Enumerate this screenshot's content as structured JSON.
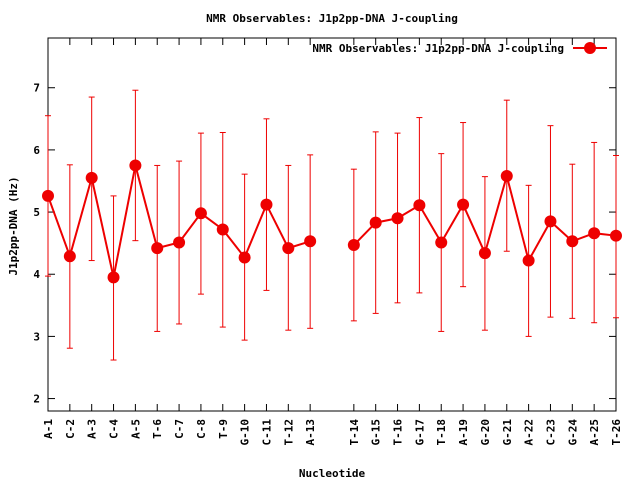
{
  "chart_data": {
    "type": "line",
    "title": "NMR Observables: J1p2pp-DNA J-coupling",
    "xlabel": "Nucleotide",
    "ylabel": "J1p2pp-DNA (Hz)",
    "ylim": [
      1.8,
      7.8
    ],
    "yticks": [
      2,
      3,
      4,
      5,
      6,
      7
    ],
    "legend": {
      "label": "NMR Observables: J1p2pp-DNA J-coupling",
      "position": "top-right"
    },
    "color": "#ee0000",
    "categories": [
      "A-1",
      "C-2",
      "A-3",
      "C-4",
      "A-5",
      "T-6",
      "C-7",
      "C-8",
      "T-9",
      "G-10",
      "C-11",
      "T-12",
      "A-13",
      "",
      "T-14",
      "G-15",
      "T-16",
      "G-17",
      "T-18",
      "A-19",
      "G-20",
      "G-21",
      "A-22",
      "C-23",
      "G-24",
      "A-25",
      "T-26"
    ],
    "series": [
      {
        "name": "NMR Observables: J1p2pp-DNA J-coupling",
        "values": [
          5.26,
          4.29,
          5.55,
          3.95,
          5.75,
          4.42,
          4.51,
          4.98,
          4.72,
          4.27,
          5.12,
          4.42,
          4.53,
          null,
          4.47,
          4.83,
          4.9,
          5.11,
          4.51,
          5.12,
          4.34,
          5.58,
          4.22,
          4.85,
          4.53,
          4.66,
          4.62
        ],
        "error_low": [
          3.97,
          2.81,
          4.22,
          2.62,
          4.54,
          3.08,
          3.2,
          3.68,
          3.15,
          2.94,
          3.74,
          3.1,
          3.13,
          null,
          3.25,
          3.37,
          3.54,
          3.7,
          3.08,
          3.8,
          3.1,
          4.37,
          3.0,
          3.31,
          3.29,
          3.22,
          3.3
        ],
        "error_high": [
          6.55,
          5.76,
          6.85,
          5.26,
          6.96,
          5.75,
          5.82,
          6.27,
          6.28,
          5.61,
          6.5,
          5.75,
          5.92,
          null,
          5.69,
          6.29,
          6.27,
          6.52,
          5.94,
          6.44,
          5.57,
          6.8,
          5.43,
          6.39,
          5.77,
          6.12,
          5.91
        ]
      }
    ]
  }
}
